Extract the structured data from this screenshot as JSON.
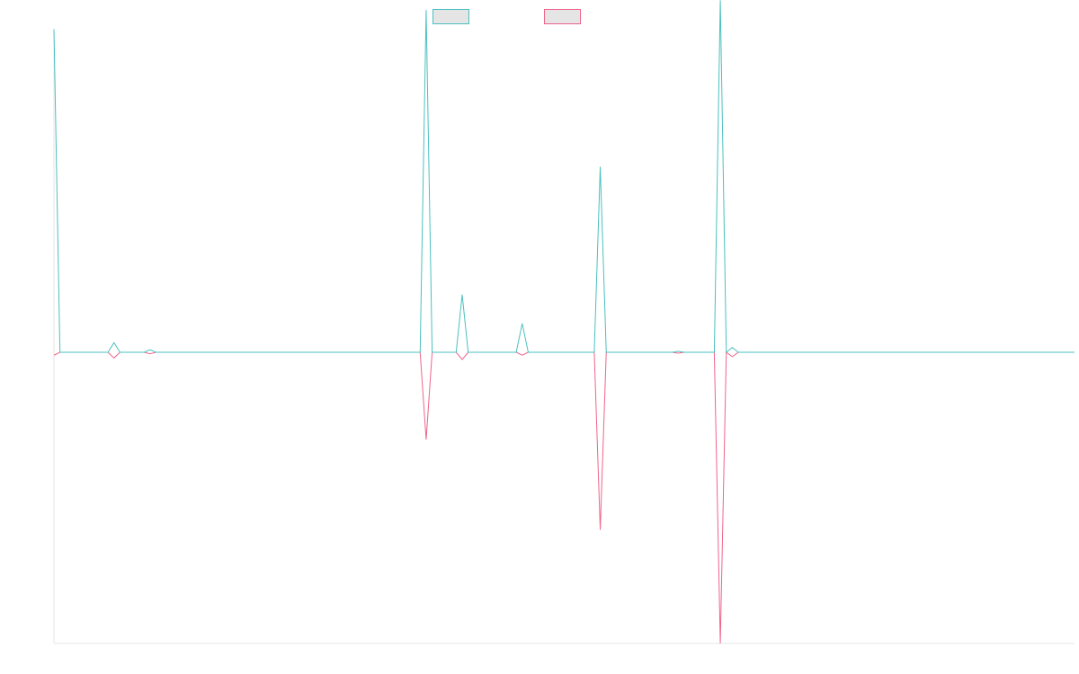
{
  "chart_data": {
    "type": "line",
    "title": "",
    "xlabel": "",
    "ylabel": "",
    "grid": false,
    "legend": "top-center",
    "x_count": 171,
    "ylim": [
      -10,
      10
    ],
    "series": [
      {
        "color": "#4bc0c0",
        "legend_fill": "#e5e5e5",
        "values": [
          10.1,
          0,
          0,
          0,
          0,
          0,
          0,
          0,
          0,
          0,
          0.3,
          0,
          0,
          0,
          0,
          0,
          0.08,
          0,
          0,
          0,
          0,
          0,
          0,
          0,
          0,
          0,
          0,
          0,
          0,
          0,
          0,
          0,
          0,
          0,
          0,
          0,
          0,
          0,
          0,
          0,
          0,
          0,
          0,
          0,
          0,
          0,
          0,
          0,
          0,
          0,
          0,
          0,
          0,
          0,
          0,
          0,
          0,
          0,
          0,
          0,
          0,
          0,
          10.7,
          0,
          0,
          0,
          0,
          0,
          1.8,
          0,
          0,
          0,
          0,
          0,
          0,
          0,
          0,
          0,
          0.9,
          0,
          0,
          0,
          0,
          0,
          0,
          0,
          0,
          0,
          0,
          0,
          0,
          5.8,
          0,
          0,
          0,
          0,
          0,
          0,
          0,
          0,
          0,
          0,
          0,
          0,
          0.03,
          0,
          0,
          0,
          0,
          0,
          0,
          11.0,
          0,
          0.15,
          0,
          0,
          0,
          0,
          0,
          0,
          0,
          0,
          0,
          0,
          0,
          0,
          0,
          0,
          0,
          0,
          0,
          0,
          0,
          0,
          0,
          0,
          0,
          0,
          0,
          0,
          0,
          0,
          0,
          0,
          0,
          0,
          0,
          0,
          0,
          0,
          0,
          0,
          0,
          0,
          0,
          0,
          0,
          0,
          0,
          0,
          0,
          0,
          0,
          0,
          0,
          0,
          0,
          0,
          0,
          0,
          0
        ]
      },
      {
        "color": "#f0648c",
        "legend_fill": "#e5e5e5",
        "values": [
          -0.1,
          0,
          0,
          0,
          0,
          0,
          0,
          0,
          0,
          0,
          -0.2,
          0,
          0,
          0,
          0,
          0,
          -0.05,
          0,
          0,
          0,
          0,
          0,
          0,
          0,
          0,
          0,
          0,
          0,
          0,
          0,
          0,
          0,
          0,
          0,
          0,
          0,
          0,
          0,
          0,
          0,
          0,
          0,
          0,
          0,
          0,
          0,
          0,
          0,
          0,
          0,
          0,
          0,
          0,
          0,
          0,
          0,
          0,
          0,
          0,
          0,
          0,
          0,
          -3.0,
          0,
          0,
          0,
          0,
          0,
          -0.25,
          0,
          0,
          0,
          0,
          0,
          0,
          0,
          0,
          0,
          -0.1,
          0,
          0,
          0,
          0,
          0,
          0,
          0,
          0,
          0,
          0,
          0,
          0,
          -6.1,
          0,
          0,
          0,
          0,
          0,
          0,
          0,
          0,
          0,
          0,
          0,
          0,
          -0.03,
          0,
          0,
          0,
          0,
          0,
          0,
          -10.0,
          0,
          -0.15,
          0,
          0,
          0,
          0,
          0,
          0,
          0,
          0,
          0,
          0,
          0,
          0,
          0,
          0,
          0,
          0,
          0,
          0,
          0,
          0,
          0,
          0,
          0,
          0,
          0,
          0,
          0,
          0,
          0,
          0,
          0,
          0,
          0,
          0,
          0,
          0,
          0,
          0,
          0,
          0,
          0,
          0,
          0,
          0,
          0,
          0,
          0,
          0,
          0,
          0,
          0,
          0,
          0,
          0,
          0,
          0,
          0
        ]
      }
    ]
  }
}
